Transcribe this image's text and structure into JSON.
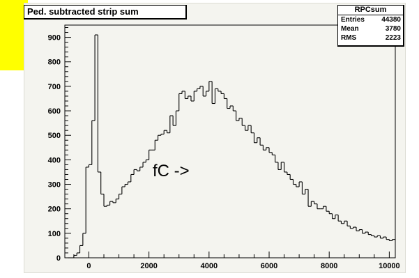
{
  "chart_data": {
    "type": "histogram",
    "title": "Ped. subtracted strip sum",
    "annotation": "fC ->",
    "xlim": [
      -800,
      10200
    ],
    "ylim": [
      0,
      950
    ],
    "xticks": [
      0,
      2000,
      4000,
      6000,
      8000,
      10000
    ],
    "yticks": [
      100,
      200,
      300,
      400,
      500,
      600,
      700,
      800,
      900
    ],
    "yticks_zero_label": "0",
    "bin_width": 100,
    "x_start": -700,
    "values": [
      0,
      0,
      10,
      20,
      50,
      100,
      370,
      380,
      560,
      910,
      350,
      260,
      210,
      215,
      230,
      225,
      240,
      260,
      290,
      300,
      310,
      340,
      360,
      355,
      370,
      390,
      400,
      440,
      440,
      480,
      500,
      505,
      520,
      510,
      580,
      540,
      600,
      670,
      680,
      650,
      660,
      640,
      680,
      690,
      700,
      660,
      680,
      720,
      630,
      690,
      680,
      670,
      650,
      610,
      620,
      600,
      560,
      570,
      540,
      520,
      540,
      510,
      470,
      490,
      460,
      440,
      450,
      430,
      420,
      390,
      360,
      390,
      350,
      340,
      320,
      300,
      290,
      310,
      260,
      280,
      210,
      230,
      220,
      200,
      200,
      210,
      190,
      180,
      160,
      175,
      150,
      140,
      150,
      130,
      120,
      125,
      110,
      115,
      100,
      105,
      95,
      90,
      85,
      90,
      80,
      85,
      75,
      70,
      75,
      65,
      60,
      65,
      70,
      55,
      60,
      65,
      55,
      60,
      50
    ],
    "stats": {
      "name": "RPCsum",
      "rows": [
        {
          "label": "Entries",
          "value": "44380"
        },
        {
          "label": "Mean",
          "value": "3780"
        },
        {
          "label": "RMS",
          "value": "2223"
        }
      ]
    },
    "colors": {
      "frame": "#f4f4ef",
      "line": "#000000",
      "highlight": "#ffff00"
    }
  }
}
